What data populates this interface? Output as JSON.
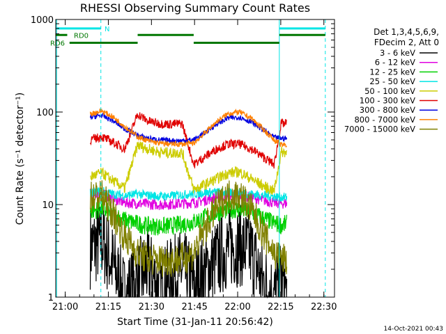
{
  "chart_data": {
    "type": "line",
    "title": "RHESSI Observing Summary Count Rates",
    "xlabel": "Start Time (31-Jan-11 20:56:42)",
    "ylabel": "Count Rate (s⁻¹ detector⁻¹)",
    "y_scale": "log",
    "ylim": [
      1,
      1000
    ],
    "x_unit": "minutes after 20:56:42 UT",
    "xlim": [
      0,
      97
    ],
    "x_ticks": [
      {
        "label": "21:00",
        "value": 3.3
      },
      {
        "label": "21:15",
        "value": 18.3
      },
      {
        "label": "21:30",
        "value": 33.3
      },
      {
        "label": "21:45",
        "value": 48.3
      },
      {
        "label": "22:00",
        "value": 63.3
      },
      {
        "label": "22:15",
        "value": 78.3
      },
      {
        "label": "22:30",
        "value": 93.3
      }
    ],
    "y_ticks": [
      {
        "label": "1",
        "value": 1
      },
      {
        "label": "10",
        "value": 10
      },
      {
        "label": "100",
        "value": 100
      },
      {
        "label": "1000",
        "value": 1000
      }
    ],
    "legend_header": [
      "Det 1,3,4,5,6,9,",
      "FDecim 2, Att 0"
    ],
    "legend_position": "right",
    "timestamp": "14-Oct-2021 00:43",
    "vertical_lines": [
      {
        "x": 0.3,
        "style": "solid",
        "color": "#00e5e5"
      },
      {
        "x": 15.7,
        "style": "dashed",
        "color": "#00e5e5"
      },
      {
        "x": 77.8,
        "style": "solid",
        "color": "#00e5e5"
      },
      {
        "x": 93.8,
        "style": "dashed",
        "color": "#00e5e5"
      }
    ],
    "bars": [
      {
        "label": "N",
        "color": "#00e5e5",
        "y": 800,
        "segments": [
          [
            0.3,
            15.7
          ],
          [
            77.8,
            93.8
          ]
        ]
      },
      {
        "label": "RD0",
        "color": "#007700",
        "y": 680,
        "segments": [
          [
            0,
            4
          ],
          [
            28.5,
            48
          ],
          [
            77.8,
            93.8
          ]
        ]
      },
      {
        "label": "RD6",
        "color": "#007700",
        "y": 560,
        "segments": [
          [
            4.8,
            28.5
          ],
          [
            48,
            77.8
          ]
        ]
      }
    ],
    "gaps": [
      [
        0,
        11.5
      ],
      [
        80.5,
        97
      ]
    ],
    "series": [
      {
        "name": "3 - 6 keV",
        "color": "#000000",
        "values": [
          [
            12.0,
            3.4
          ],
          [
            16.0,
            4.1
          ],
          [
            20.0,
            2.2
          ],
          [
            24.0,
            1.0
          ],
          [
            28.5,
            1.5
          ],
          [
            32.0,
            2.1
          ],
          [
            36.0,
            1.2
          ],
          [
            40.0,
            1.6
          ],
          [
            44.0,
            2.0
          ],
          [
            48.0,
            1.3
          ],
          [
            52.0,
            1.8
          ],
          [
            56.0,
            2.6
          ],
          [
            60.0,
            3.4
          ],
          [
            64.0,
            3.6
          ],
          [
            68.0,
            3.1
          ],
          [
            72.0,
            1.5
          ],
          [
            76.0,
            1.0
          ],
          [
            78.5,
            1.7
          ],
          [
            80.5,
            1.0
          ]
        ]
      },
      {
        "name": "6 - 12 keV",
        "color": "#e000e0",
        "values": [
          [
            12.0,
            13.0
          ],
          [
            16.0,
            13.0
          ],
          [
            20.0,
            11.5
          ],
          [
            24.0,
            10.5
          ],
          [
            28.5,
            10.3
          ],
          [
            32.0,
            10.1
          ],
          [
            36.0,
            10.0
          ],
          [
            40.0,
            10.1
          ],
          [
            44.0,
            10.3
          ],
          [
            48.0,
            10.5
          ],
          [
            52.0,
            11.2
          ],
          [
            56.0,
            12.0
          ],
          [
            60.0,
            12.5
          ],
          [
            64.0,
            12.6
          ],
          [
            68.0,
            12.0
          ],
          [
            72.0,
            11.2
          ],
          [
            76.0,
            10.5
          ],
          [
            78.5,
            10.3
          ],
          [
            80.5,
            10.3
          ]
        ]
      },
      {
        "name": "12 - 25 keV",
        "color": "#00d000",
        "values": [
          [
            12.0,
            8.5
          ],
          [
            16.0,
            9.0
          ],
          [
            20.0,
            7.8
          ],
          [
            24.0,
            6.8
          ],
          [
            28.5,
            6.2
          ],
          [
            32.0,
            5.9
          ],
          [
            36.0,
            5.8
          ],
          [
            40.0,
            5.9
          ],
          [
            44.0,
            6.1
          ],
          [
            48.0,
            6.5
          ],
          [
            52.0,
            7.3
          ],
          [
            56.0,
            8.2
          ],
          [
            60.0,
            8.8
          ],
          [
            64.0,
            8.9
          ],
          [
            68.0,
            8.2
          ],
          [
            72.0,
            7.2
          ],
          [
            76.0,
            6.3
          ],
          [
            78.5,
            6.0
          ],
          [
            80.5,
            6.2
          ]
        ]
      },
      {
        "name": "25 - 50 keV",
        "color": "#00e5e5",
        "values": [
          [
            12.0,
            13.5
          ],
          [
            16.0,
            14.0
          ],
          [
            20.0,
            13.0
          ],
          [
            24.0,
            12.5
          ],
          [
            28.5,
            13.0
          ],
          [
            32.0,
            12.6
          ],
          [
            36.0,
            12.3
          ],
          [
            40.0,
            12.4
          ],
          [
            44.0,
            12.8
          ],
          [
            48.0,
            13.0
          ],
          [
            52.0,
            13.5
          ],
          [
            56.0,
            13.6
          ],
          [
            60.0,
            13.5
          ],
          [
            64.0,
            13.4
          ],
          [
            68.0,
            13.0
          ],
          [
            72.0,
            12.6
          ],
          [
            76.0,
            12.2
          ],
          [
            78.5,
            12.0
          ],
          [
            80.5,
            12.0
          ]
        ]
      },
      {
        "name": "50 - 100 keV",
        "color": "#cccc00",
        "values": [
          [
            12.0,
            20.0
          ],
          [
            16.0,
            22.0
          ],
          [
            20.0,
            18.0
          ],
          [
            24.0,
            15.0
          ],
          [
            28.5,
            44.0
          ],
          [
            32.0,
            40.0
          ],
          [
            36.0,
            37.0
          ],
          [
            40.0,
            36.0
          ],
          [
            44.0,
            36.5
          ],
          [
            48.0,
            14.5
          ],
          [
            52.0,
            16.5
          ],
          [
            56.0,
            19.0
          ],
          [
            60.0,
            22.0
          ],
          [
            64.0,
            22.5
          ],
          [
            68.0,
            19.0
          ],
          [
            72.0,
            16.0
          ],
          [
            76.0,
            14.0
          ],
          [
            78.5,
            37.0
          ],
          [
            80.5,
            37.0
          ]
        ]
      },
      {
        "name": "100 - 300 keV",
        "color": "#e00000",
        "values": [
          [
            12.0,
            50.0
          ],
          [
            16.0,
            54.0
          ],
          [
            20.0,
            47.0
          ],
          [
            24.0,
            40.0
          ],
          [
            28.5,
            95.0
          ],
          [
            32.0,
            80.0
          ],
          [
            36.0,
            75.0
          ],
          [
            40.0,
            74.0
          ],
          [
            44.0,
            75.0
          ],
          [
            48.0,
            27.0
          ],
          [
            52.0,
            33.0
          ],
          [
            56.0,
            40.0
          ],
          [
            60.0,
            45.0
          ],
          [
            64.0,
            45.0
          ],
          [
            68.0,
            40.0
          ],
          [
            72.0,
            33.0
          ],
          [
            76.0,
            27.0
          ],
          [
            78.5,
            75.0
          ],
          [
            80.5,
            75.0
          ]
        ]
      },
      {
        "name": "300 - 800 keV",
        "color": "#0000e0",
        "values": [
          [
            12.0,
            88.0
          ],
          [
            16.0,
            92.0
          ],
          [
            20.0,
            80.0
          ],
          [
            24.0,
            66.0
          ],
          [
            28.5,
            56.0
          ],
          [
            32.0,
            52.0
          ],
          [
            36.0,
            50.0
          ],
          [
            40.0,
            49.0
          ],
          [
            44.0,
            49.0
          ],
          [
            48.0,
            50.0
          ],
          [
            52.0,
            60.0
          ],
          [
            56.0,
            74.0
          ],
          [
            60.0,
            86.0
          ],
          [
            64.0,
            88.0
          ],
          [
            68.0,
            78.0
          ],
          [
            72.0,
            65.0
          ],
          [
            76.0,
            53.0
          ],
          [
            78.5,
            52.0
          ],
          [
            80.5,
            52.0
          ]
        ]
      },
      {
        "name": "800 - 7000 keV",
        "color": "#ff8000",
        "values": [
          [
            12.0,
            95.0
          ],
          [
            16.0,
            103.0
          ],
          [
            20.0,
            88.0
          ],
          [
            24.0,
            70.0
          ],
          [
            28.5,
            54.0
          ],
          [
            32.0,
            49.0
          ],
          [
            36.0,
            46.0
          ],
          [
            40.0,
            45.0
          ],
          [
            44.0,
            45.0
          ],
          [
            48.0,
            46.0
          ],
          [
            52.0,
            60.0
          ],
          [
            56.0,
            79.0
          ],
          [
            60.0,
            96.0
          ],
          [
            64.0,
            100.0
          ],
          [
            68.0,
            86.0
          ],
          [
            72.0,
            66.0
          ],
          [
            76.0,
            50.0
          ],
          [
            78.5,
            44.0
          ],
          [
            80.5,
            44.0
          ]
        ]
      },
      {
        "name": "7000 - 15000 keV",
        "color": "#808000",
        "values": [
          [
            12.0,
            12.0
          ],
          [
            16.0,
            12.5
          ],
          [
            20.0,
            8.0
          ],
          [
            24.0,
            4.5
          ],
          [
            28.5,
            3.0
          ],
          [
            32.0,
            2.6
          ],
          [
            36.0,
            2.5
          ],
          [
            40.0,
            2.5
          ],
          [
            44.0,
            2.6
          ],
          [
            48.0,
            3.0
          ],
          [
            52.0,
            5.5
          ],
          [
            56.0,
            9.5
          ],
          [
            60.0,
            12.5
          ],
          [
            64.0,
            12.8
          ],
          [
            68.0,
            9.0
          ],
          [
            72.0,
            5.0
          ],
          [
            76.0,
            3.0
          ],
          [
            78.5,
            2.6
          ],
          [
            80.5,
            2.5
          ]
        ]
      }
    ]
  }
}
